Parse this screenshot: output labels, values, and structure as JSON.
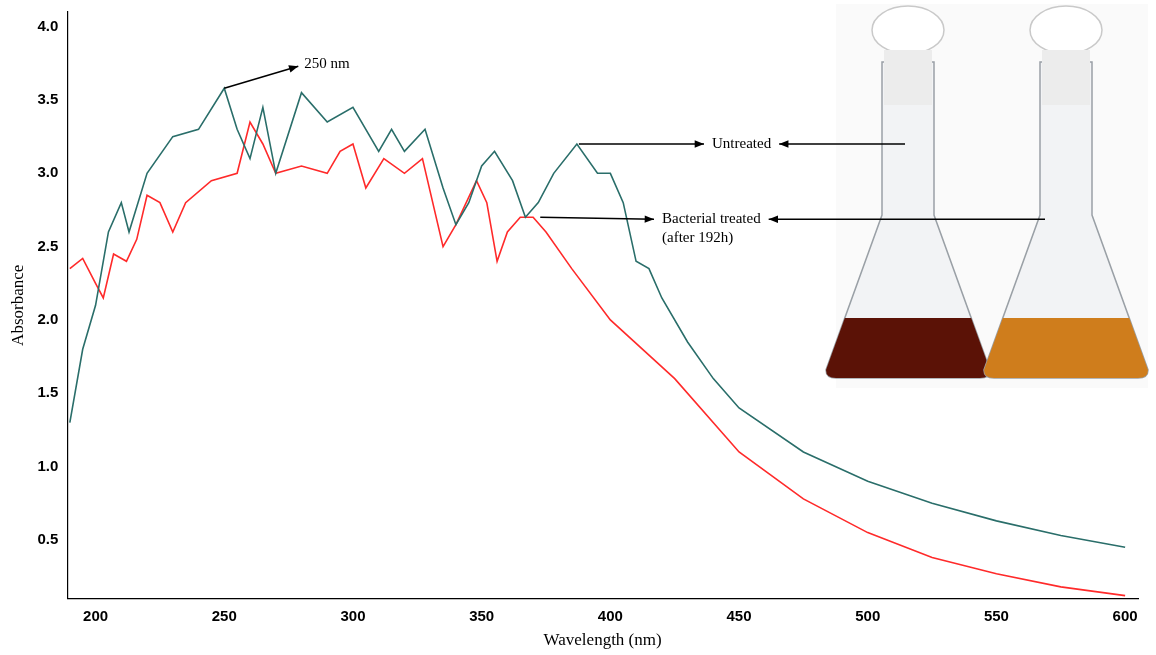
{
  "chart_data": {
    "type": "line",
    "x_label": "Wavelength (nm)",
    "y_label": "Absorbance",
    "xlim": [
      189,
      605
    ],
    "xticks": [
      200,
      250,
      300,
      350,
      400,
      450,
      500,
      550,
      600
    ],
    "ylim": [
      0.1,
      4.1
    ],
    "yticks": [
      {
        "value": 0.5,
        "label": "0.5"
      },
      {
        "value": 1,
        "label": "1.0"
      },
      {
        "value": 1.5,
        "label": "1.5"
      },
      {
        "value": 2,
        "label": "2.0"
      },
      {
        "value": 2.5,
        "label": "2.5"
      },
      {
        "value": 3,
        "label": "3.0"
      },
      {
        "value": 3.5,
        "label": "3.5"
      },
      {
        "value": 4,
        "label": "4.0"
      }
    ],
    "grid": false,
    "series": [
      {
        "name": "Untreated",
        "color": "#2a6e6a",
        "x": [
          190,
          195,
          200,
          205,
          210,
          213,
          220,
          230,
          240,
          250,
          255,
          260,
          265,
          270,
          280,
          290,
          300,
          310,
          315,
          320,
          328,
          335,
          340,
          345,
          350,
          355,
          362,
          367,
          372,
          378,
          387,
          395,
          400,
          405,
          410,
          415,
          420,
          430,
          440,
          450,
          475,
          500,
          525,
          550,
          575,
          600
        ],
        "values": [
          1.3,
          1.8,
          2.1,
          2.6,
          2.8,
          2.6,
          3.0,
          3.25,
          3.3,
          3.58,
          3.3,
          3.1,
          3.45,
          3.0,
          3.55,
          3.35,
          3.45,
          3.15,
          3.3,
          3.15,
          3.3,
          2.9,
          2.65,
          2.8,
          3.05,
          3.15,
          2.95,
          2.7,
          2.8,
          3.0,
          3.2,
          3.0,
          3.0,
          2.8,
          2.4,
          2.35,
          2.15,
          1.85,
          1.6,
          1.4,
          1.1,
          0.9,
          0.75,
          0.63,
          0.53,
          0.45
        ]
      },
      {
        "name": "Bacterial treated (after 192h)",
        "color": "#ff2a2a",
        "x": [
          190,
          195,
          200,
          203,
          207,
          212,
          216,
          220,
          225,
          230,
          235,
          245,
          255,
          260,
          265,
          270,
          280,
          290,
          295,
          300,
          305,
          312,
          320,
          327,
          335,
          340,
          348,
          352,
          356,
          360,
          365,
          370,
          375,
          385,
          400,
          425,
          450,
          475,
          500,
          525,
          550,
          575,
          600
        ],
        "values": [
          2.35,
          2.42,
          2.25,
          2.15,
          2.45,
          2.4,
          2.55,
          2.85,
          2.8,
          2.6,
          2.8,
          2.95,
          3.0,
          3.35,
          3.2,
          3.0,
          3.05,
          3.0,
          3.15,
          3.2,
          2.9,
          3.1,
          3.0,
          3.1,
          2.5,
          2.65,
          2.95,
          2.8,
          2.4,
          2.6,
          2.7,
          2.7,
          2.6,
          2.35,
          2.0,
          1.6,
          1.1,
          0.78,
          0.55,
          0.38,
          0.27,
          0.18,
          0.12
        ]
      }
    ],
    "annotations": [
      {
        "text": "250 nm",
        "x": 250,
        "y": 3.58
      },
      {
        "text": "Untreated",
        "x": 387,
        "y": 3.2
      },
      {
        "text": "Bacterial treated (after 192h)",
        "x": 372,
        "y": 2.7
      }
    ]
  }
}
